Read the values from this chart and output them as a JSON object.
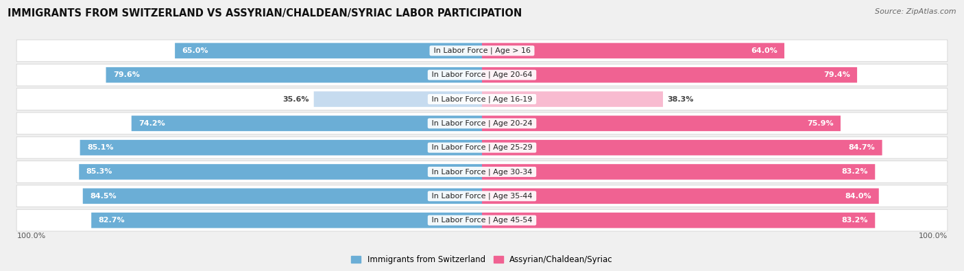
{
  "title": "IMMIGRANTS FROM SWITZERLAND VS ASSYRIAN/CHALDEAN/SYRIAC LABOR PARTICIPATION",
  "source": "Source: ZipAtlas.com",
  "categories": [
    "In Labor Force | Age > 16",
    "In Labor Force | Age 20-64",
    "In Labor Force | Age 16-19",
    "In Labor Force | Age 20-24",
    "In Labor Force | Age 25-29",
    "In Labor Force | Age 30-34",
    "In Labor Force | Age 35-44",
    "In Labor Force | Age 45-54"
  ],
  "swiss_values": [
    65.0,
    79.6,
    35.6,
    74.2,
    85.1,
    85.3,
    84.5,
    82.7
  ],
  "assyrian_values": [
    64.0,
    79.4,
    38.3,
    75.9,
    84.7,
    83.2,
    84.0,
    83.2
  ],
  "swiss_color": "#6baed6",
  "swiss_color_light": "#c6dbef",
  "assyrian_color": "#f06292",
  "assyrian_color_light": "#f8bbd0",
  "legend_swiss": "Immigrants from Switzerland",
  "legend_assyrian": "Assyrian/Chaldean/Syriac",
  "title_fontsize": 10.5,
  "source_fontsize": 8,
  "label_fontsize": 8,
  "value_fontsize": 8,
  "max_val": 100.0,
  "bg_color": "#f0f0f0",
  "row_bg_color": "#e8e8e8"
}
